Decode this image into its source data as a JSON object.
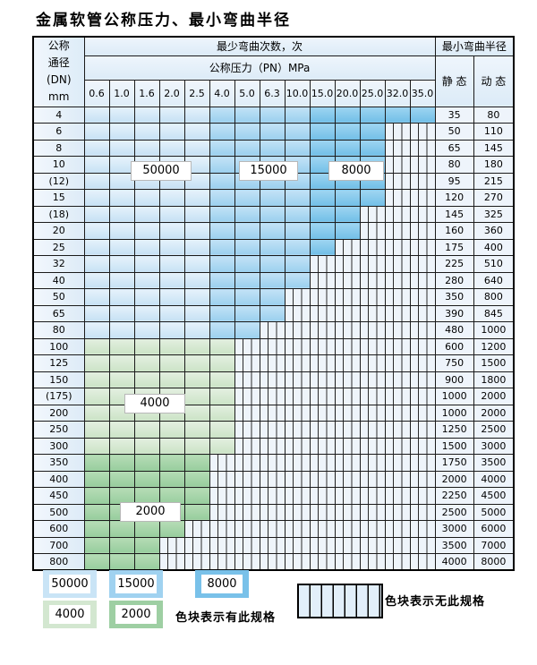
{
  "title": "金属软管公称压力、最小弯曲半径",
  "table": {
    "header": {
      "dn_head": "公称\n通径\n(DN)\nmm",
      "bend_cycles": "最少弯曲次数，次",
      "pressure": "公称压力（PN）MPa",
      "pressure_cols": [
        "0.6",
        "1.0",
        "1.6",
        "2.0",
        "2.5",
        "4.0",
        "5.0",
        "6.3",
        "10.0",
        "15.0",
        "20.0",
        "25.0",
        "32.0",
        "35.0"
      ],
      "min_radius": "最小弯曲半径",
      "static": "静 态",
      "dynamic": "动 态"
    },
    "regions": {
      "blue_light_end_col": 5,
      "blue_mid_end_col": 9,
      "labels": {
        "r50000": "50000",
        "r15000": "15000",
        "r8000": "8000",
        "r4000": "4000",
        "r2000": "2000"
      }
    },
    "rows": [
      {
        "dn": "4",
        "static": "35",
        "dynamic": "80",
        "region": "blue",
        "colored": 14
      },
      {
        "dn": "6",
        "static": "50",
        "dynamic": "110",
        "region": "blue",
        "colored": 12
      },
      {
        "dn": "8",
        "static": "65",
        "dynamic": "145",
        "region": "blue",
        "colored": 12
      },
      {
        "dn": "10",
        "static": "80",
        "dynamic": "180",
        "region": "blue",
        "colored": 12
      },
      {
        "dn": "(12)",
        "static": "95",
        "dynamic": "215",
        "region": "blue",
        "colored": 12
      },
      {
        "dn": "15",
        "static": "120",
        "dynamic": "270",
        "region": "blue",
        "colored": 12
      },
      {
        "dn": "(18)",
        "static": "145",
        "dynamic": "325",
        "region": "blue",
        "colored": 11
      },
      {
        "dn": "20",
        "static": "160",
        "dynamic": "360",
        "region": "blue",
        "colored": 11
      },
      {
        "dn": "25",
        "static": "175",
        "dynamic": "400",
        "region": "blue",
        "colored": 10
      },
      {
        "dn": "32",
        "static": "225",
        "dynamic": "510",
        "region": "blue",
        "colored": 9
      },
      {
        "dn": "40",
        "static": "280",
        "dynamic": "640",
        "region": "blue",
        "colored": 9
      },
      {
        "dn": "50",
        "static": "350",
        "dynamic": "800",
        "region": "blue",
        "colored": 8
      },
      {
        "dn": "65",
        "static": "390",
        "dynamic": "845",
        "region": "blue",
        "colored": 8
      },
      {
        "dn": "80",
        "static": "480",
        "dynamic": "1000",
        "region": "blue",
        "colored": 7
      },
      {
        "dn": "100",
        "static": "600",
        "dynamic": "1200",
        "region": "green-4000",
        "colored": 6
      },
      {
        "dn": "125",
        "static": "750",
        "dynamic": "1500",
        "region": "green-4000",
        "colored": 6
      },
      {
        "dn": "150",
        "static": "900",
        "dynamic": "1800",
        "region": "green-4000",
        "colored": 6
      },
      {
        "dn": "(175)",
        "static": "1000",
        "dynamic": "2000",
        "region": "green-4000",
        "colored": 6
      },
      {
        "dn": "200",
        "static": "1000",
        "dynamic": "2000",
        "region": "green-4000",
        "colored": 6
      },
      {
        "dn": "250",
        "static": "1250",
        "dynamic": "2500",
        "region": "green-4000",
        "colored": 6
      },
      {
        "dn": "300",
        "static": "1500",
        "dynamic": "3000",
        "region": "green-4000",
        "colored": 6
      },
      {
        "dn": "350",
        "static": "1750",
        "dynamic": "3500",
        "region": "green-2000",
        "colored": 5
      },
      {
        "dn": "400",
        "static": "2000",
        "dynamic": "4000",
        "region": "green-2000",
        "colored": 5
      },
      {
        "dn": "450",
        "static": "2250",
        "dynamic": "4500",
        "region": "green-2000",
        "colored": 5
      },
      {
        "dn": "500",
        "static": "2500",
        "dynamic": "5000",
        "region": "green-2000",
        "colored": 5
      },
      {
        "dn": "600",
        "static": "3000",
        "dynamic": "6000",
        "region": "green-2000",
        "colored": 4
      },
      {
        "dn": "700",
        "static": "3500",
        "dynamic": "7000",
        "region": "green-2000",
        "colored": 3
      },
      {
        "dn": "800",
        "static": "4000",
        "dynamic": "8000",
        "region": "green-2000",
        "colored": 3
      }
    ]
  },
  "legend": {
    "swatches": [
      {
        "label": "50000",
        "color": "#c9e4f6"
      },
      {
        "label": "15000",
        "color": "#a0d2f0"
      },
      {
        "label": "8000",
        "color": "#79c1e9"
      },
      {
        "label": "4000",
        "color": "#d3e7d0"
      },
      {
        "label": "2000",
        "color": "#9ecfa3"
      }
    ],
    "has_spec_text": "色块表示有此规格",
    "no_spec_text": "色块表示无此规格"
  },
  "colors": {
    "blue_50000": "#c9e4f6",
    "blue_15000": "#a0d2f0",
    "blue_8000": "#79c1e9",
    "green_4000": "#d3e7d0",
    "green_2000": "#9ecfa3",
    "no_spec_bg": "#eef4fa",
    "grid_line": "#1b1b1b"
  }
}
